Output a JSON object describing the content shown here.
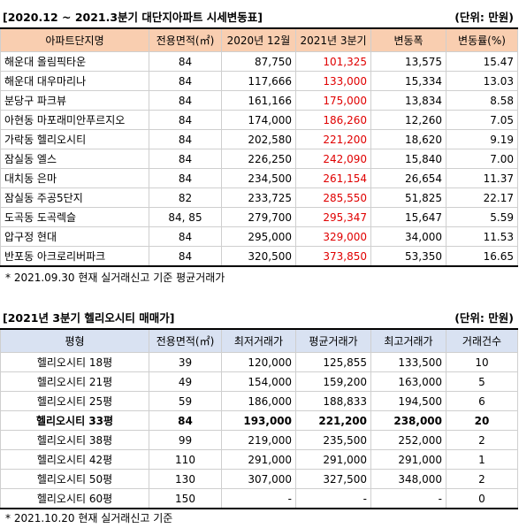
{
  "table1": {
    "title": "[2020.12 ~ 2021.3분기 대단지아파트 시세변동표]",
    "unit": "(단위: 만원)",
    "headers": [
      "아파트단지명",
      "전용면적(㎡)",
      "2020년 12월",
      "2021년 3분기",
      "변동폭",
      "변동률(%)"
    ],
    "rows": [
      [
        "해운대 올림픽타운",
        "84",
        "87,750",
        "101,325",
        "13,575",
        "15.47"
      ],
      [
        "해운대 대우마리나",
        "84",
        "117,666",
        "133,000",
        "15,334",
        "13.03"
      ],
      [
        "분당구 파크뷰",
        "84",
        "161,166",
        "175,000",
        "13,834",
        "8.58"
      ],
      [
        "아현동 마포래미안푸르지오",
        "84",
        "174,000",
        "186,260",
        "12,260",
        "7.05"
      ],
      [
        "가락동 헬리오시티",
        "84",
        "202,580",
        "221,200",
        "18,620",
        "9.19"
      ],
      [
        "잠실동 엘스",
        "84",
        "226,250",
        "242,090",
        "15,840",
        "7.00"
      ],
      [
        "대치동 은마",
        "84",
        "234,500",
        "261,154",
        "26,654",
        "11.37"
      ],
      [
        "잠실동 주공5단지",
        "82",
        "233,725",
        "285,550",
        "51,825",
        "22.17"
      ],
      [
        "도곡동 도곡렉슬",
        "84, 85",
        "279,700",
        "295,347",
        "15,647",
        "5.59"
      ],
      [
        "압구정 현대",
        "84",
        "295,000",
        "329,000",
        "34,000",
        "11.53"
      ],
      [
        "반포동 아크로리버파크",
        "84",
        "320,500",
        "373,850",
        "53,350",
        "16.65"
      ]
    ],
    "note": "* 2021.09.30 현재 실거래신고 기준 평균거래가"
  },
  "table2": {
    "title": "[2021년 3분기 헬리오시티 매매가]",
    "unit": "(단위: 만원)",
    "headers": [
      "평형",
      "전용면적(㎡)",
      "최저거래가",
      "평균거래가",
      "최고거래가",
      "거래건수"
    ],
    "rows": [
      [
        "헬리오시티 18평",
        "39",
        "120,000",
        "125,855",
        "133,500",
        "10"
      ],
      [
        "헬리오시티 21평",
        "49",
        "154,000",
        "159,200",
        "163,000",
        "5"
      ],
      [
        "헬리오시티 25평",
        "59",
        "186,000",
        "188,833",
        "194,500",
        "6"
      ],
      [
        "헬리오시티 33평",
        "84",
        "193,000",
        "221,200",
        "238,000",
        "20"
      ],
      [
        "헬리오시티 38평",
        "99",
        "219,000",
        "235,500",
        "252,000",
        "2"
      ],
      [
        "헬리오시티 42평",
        "110",
        "291,000",
        "291,000",
        "291,000",
        "1"
      ],
      [
        "헬리오시티 50평",
        "130",
        "307,000",
        "327,500",
        "348,000",
        "2"
      ],
      [
        "헬리오시티 60평",
        "150",
        "-",
        "-",
        "-",
        "0"
      ]
    ],
    "note": "* 2021.10.20 현재 실거래신고 기준"
  },
  "colors": {
    "header1_bg": "#f9ceb0",
    "header2_bg": "#d9e2f2",
    "highlight_text": "#e00000"
  }
}
